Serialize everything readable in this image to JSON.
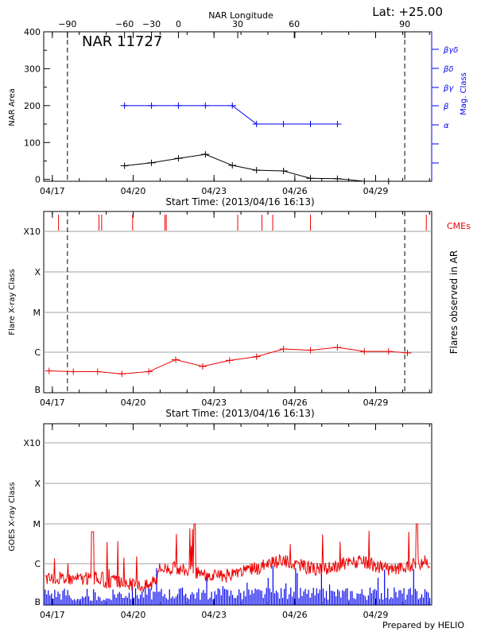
{
  "header": {
    "top_axis_title": "NAR Longitude",
    "lat": "Lat: +25.00",
    "nar": "NAR 11727",
    "footer": "Prepared by HELIO"
  },
  "colors": {
    "black": "#000000",
    "red": "#ee0000",
    "blue": "#0000ee",
    "grid": "#a0a0a0"
  },
  "chart_data": [
    {
      "type": "line",
      "id": "nar_area",
      "ylabel": "NAR Area",
      "ylabel_right": "Mag. Class",
      "xlabel": "Start Time: (2013/04/16 16:13)",
      "xlim": [
        0,
        14.4
      ],
      "ylim": [
        -5,
        400
      ],
      "x_tick_values": [
        0.32,
        3.32,
        6.32,
        9.32,
        12.32
      ],
      "x_tick_labels": [
        "04/17",
        "04/20",
        "04/23",
        "04/26",
        "04/29"
      ],
      "y_ticks": [
        0,
        100,
        200,
        300,
        400
      ],
      "top_axis": {
        "title": "NAR Longitude",
        "tick_values": [
          0.88,
          3.0,
          4.0,
          5.0,
          7.2,
          9.3,
          13.4
        ],
        "tick_labels": [
          "−90",
          "−60",
          "−30",
          "0",
          "30",
          "60",
          "90"
        ]
      },
      "vlines": [
        0.88,
        13.4
      ],
      "right_axis_labels": [
        "βγδ",
        "βδ",
        "βγ",
        "β",
        "α"
      ],
      "series": [
        {
          "color": "blue",
          "x": [
            3.0,
            4.0,
            5.0,
            6.0,
            7.0,
            7.9,
            8.9,
            9.9,
            10.9
          ],
          "y": [
            200,
            200,
            200,
            200,
            200,
            150,
            150,
            150,
            150
          ]
        },
        {
          "color": "black",
          "x": [
            3.0,
            4.0,
            5.0,
            6.0,
            7.0,
            7.9,
            8.9,
            9.9,
            10.9,
            11.9,
            12.8
          ],
          "y": [
            37,
            45,
            57,
            68,
            38,
            25,
            23,
            3,
            2,
            -5,
            -5
          ]
        }
      ]
    },
    {
      "type": "line",
      "id": "flare_class",
      "ylabel": "Flare X-ray Class",
      "ylabel_right": "Flares observed in AR",
      "xlabel": "Start Time: (2013/04/16 16:13)",
      "xlim": [
        0,
        14.4
      ],
      "x_tick_values": [
        0.32,
        3.32,
        6.32,
        9.32,
        12.32
      ],
      "x_tick_labels": [
        "04/17",
        "04/20",
        "04/23",
        "04/26",
        "04/29"
      ],
      "y_categories": [
        "B",
        "C",
        "M",
        "X",
        "X10"
      ],
      "vlines": [
        0.88,
        13.4
      ],
      "cme_label": "CMEs",
      "cme_times": [
        0.55,
        2.05,
        2.15,
        3.3,
        4.5,
        4.55,
        7.2,
        8.1,
        8.5,
        9.9,
        14.2
      ],
      "series": [
        {
          "color": "red",
          "x": [
            0.2,
            1.1,
            2.0,
            2.9,
            3.9,
            4.9,
            5.9,
            6.9,
            7.9,
            8.9,
            9.9,
            10.9,
            11.9,
            12.8,
            13.5
          ],
          "y": [
            0.5,
            0.48,
            0.48,
            0.42,
            0.48,
            0.8,
            0.62,
            0.78,
            0.88,
            1.08,
            1.05,
            1.12,
            1.02,
            1.02,
            0.98
          ]
        }
      ]
    },
    {
      "type": "line",
      "id": "goes",
      "ylabel": "GOES X-ray Class",
      "xlim": [
        0,
        14.4
      ],
      "x_tick_values": [
        0.32,
        3.32,
        6.32,
        9.32,
        12.32
      ],
      "x_tick_labels": [
        "04/17",
        "04/20",
        "04/23",
        "04/26",
        "04/29"
      ],
      "y_categories": [
        "B",
        "C",
        "M",
        "X",
        "X10"
      ],
      "series": [
        {
          "color": "red",
          "name": "",
          "y_range": [
            0.2,
            2.0
          ]
        },
        {
          "color": "blue",
          "name": "",
          "y_range": [
            0.0,
            1.0
          ]
        }
      ]
    }
  ]
}
